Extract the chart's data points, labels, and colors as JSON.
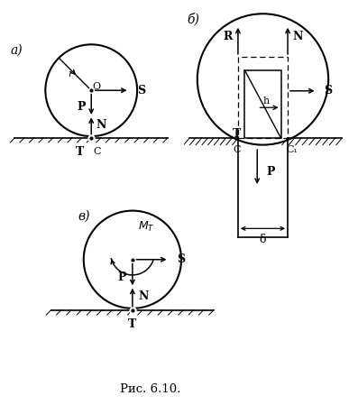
{
  "bg_color": "#ffffff",
  "label_a": "а)",
  "label_b": "б)",
  "label_v": "в)",
  "caption": "Рис. 6.10."
}
